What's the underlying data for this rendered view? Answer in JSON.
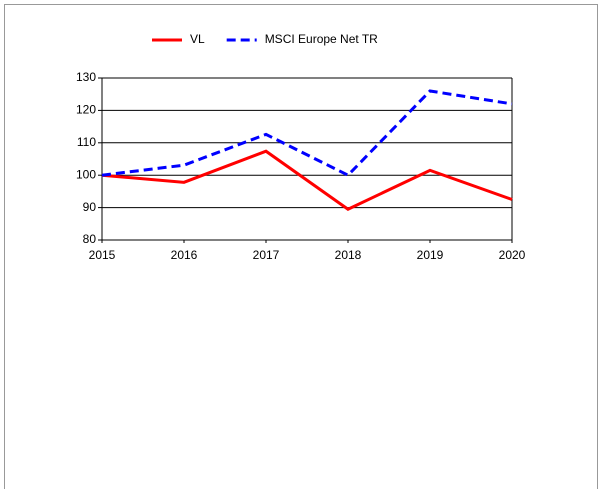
{
  "chart_data": {
    "type": "line",
    "x": [
      2015,
      2016,
      2017,
      2018,
      2019,
      2020
    ],
    "xlim": [
      2015,
      2020
    ],
    "xticks": [
      2015,
      2016,
      2017,
      2018,
      2019,
      2020
    ],
    "ylim": [
      80,
      130
    ],
    "yticks": [
      80,
      90,
      100,
      110,
      120,
      130
    ],
    "grid": true,
    "legend": "top",
    "series": [
      {
        "name": "VL",
        "color": "#ff0000",
        "dash": false,
        "values": [
          100,
          97.8,
          107.4,
          89.5,
          101.5,
          92.5
        ]
      },
      {
        "name": "MSCI Europe Net TR",
        "color": "#0000ff",
        "dash": true,
        "values": [
          100,
          103.1,
          112.6,
          100,
          126,
          122
        ]
      }
    ]
  }
}
